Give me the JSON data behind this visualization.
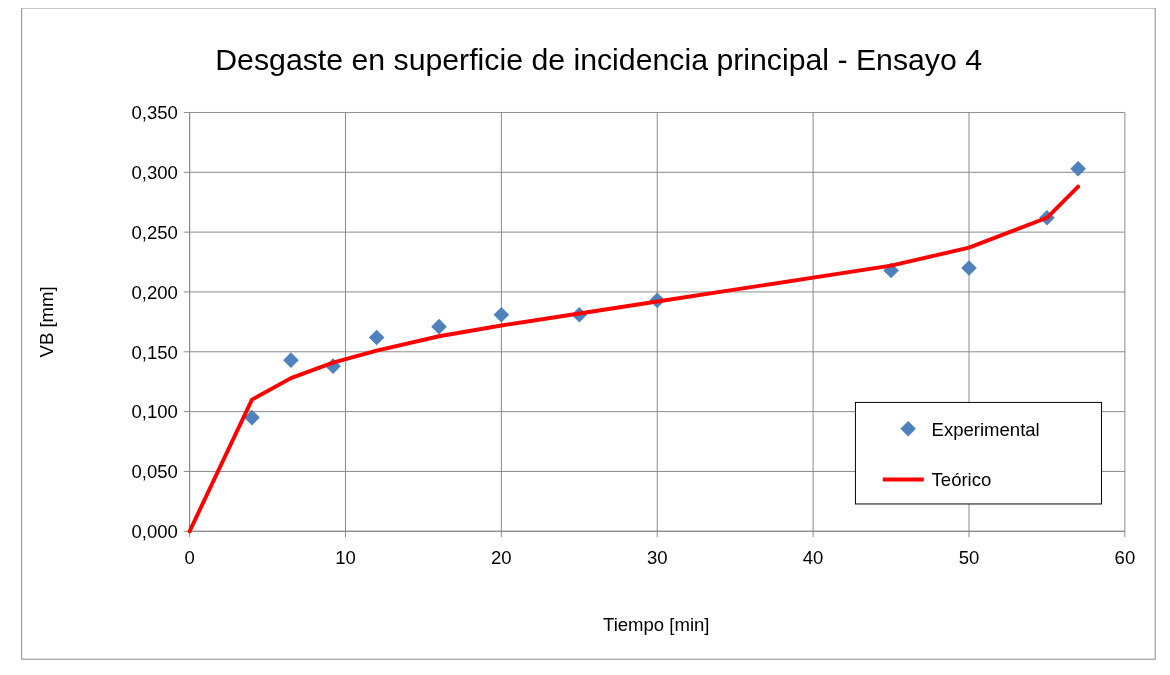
{
  "chart_data": {
    "type": "line",
    "title": "Desgaste en superficie de incidencia principal - Ensayo 4",
    "xlabel": "Tiempo [min]",
    "ylabel": "VB [mm]",
    "xlim": [
      0,
      60
    ],
    "xticks": [
      0,
      10,
      20,
      30,
      40,
      50,
      60
    ],
    "ylim": [
      0,
      0.35
    ],
    "yticks": [
      {
        "value": 0,
        "label": "0,000"
      },
      {
        "value": 0.05,
        "label": "0,050"
      },
      {
        "value": 0.1,
        "label": "0,100"
      },
      {
        "value": 0.15,
        "label": "0,150"
      },
      {
        "value": 0.2,
        "label": "0,200"
      },
      {
        "value": 0.25,
        "label": "0,250"
      },
      {
        "value": 0.3,
        "label": "0,300"
      },
      {
        "value": 0.35,
        "label": "0,350"
      }
    ],
    "grid": true,
    "legend": "bottom right",
    "series": [
      {
        "name": "Experimental",
        "type": "scatter",
        "marker": "diamond",
        "color": "#4f81bd",
        "x": [
          4,
          6.5,
          9.2,
          12,
          16,
          20,
          25,
          30,
          45,
          50,
          55,
          57
        ],
        "values": [
          0.095,
          0.143,
          0.138,
          0.162,
          0.171,
          0.181,
          0.181,
          0.193,
          0.218,
          0.22,
          0.262,
          0.303
        ]
      },
      {
        "name": "Teórico",
        "marker": "none",
        "line_style": "solid",
        "color": "#ff0000",
        "x": [
          0,
          4,
          6.5,
          9.2,
          12,
          16,
          20,
          25,
          30,
          45,
          50,
          55,
          57
        ],
        "values": [
          0,
          0.11,
          0.128,
          0.141,
          0.151,
          0.163,
          0.172,
          0.182,
          0.192,
          0.222,
          0.237,
          0.262,
          0.288
        ]
      }
    ]
  }
}
